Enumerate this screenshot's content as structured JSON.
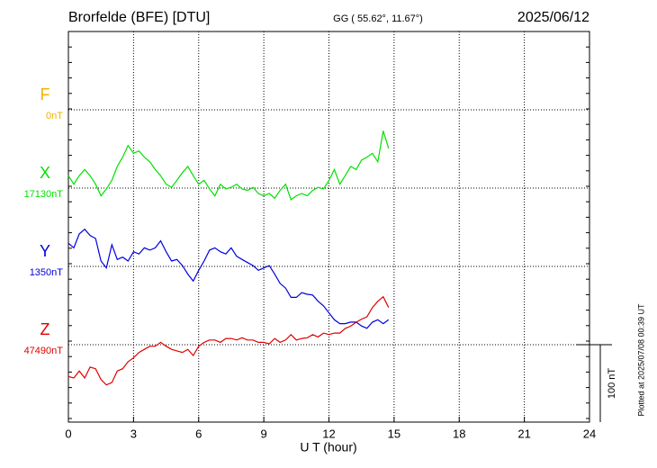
{
  "chart_data": {
    "type": "line",
    "title": "Brorfelde (BFE)  [DTU]",
    "subtitle": "GG ( 55.62°,  11.67°)",
    "date": "2025/06/12",
    "x_label": "U T (hour)",
    "footnote": "Plotted at 2025/07/08 00:39 UT",
    "xlim": [
      0,
      24
    ],
    "xticks": [
      0,
      3,
      6,
      9,
      12,
      15,
      18,
      21,
      24
    ],
    "scale_bar": {
      "value": 100,
      "label": "100 nT"
    },
    "x": [
      0,
      0.25,
      0.5,
      0.75,
      1,
      1.25,
      1.5,
      1.75,
      2,
      2.25,
      2.5,
      2.75,
      3,
      3.25,
      3.5,
      3.75,
      4,
      4.25,
      4.5,
      4.75,
      5,
      5.25,
      5.5,
      5.75,
      6,
      6.25,
      6.5,
      6.75,
      7,
      7.25,
      7.5,
      7.75,
      8,
      8.25,
      8.5,
      8.75,
      9,
      9.25,
      9.5,
      9.75,
      10,
      10.25,
      10.5,
      10.75,
      11,
      11.25,
      11.5,
      11.75,
      12,
      12.25,
      12.5,
      12.75,
      13,
      13.25,
      13.5,
      13.75,
      14,
      14.25,
      14.5,
      14.75
    ],
    "series": [
      {
        "name": "F",
        "color": "#f0b000",
        "baseline": {
          "value": 0,
          "label": "0nT"
        }
      },
      {
        "name": "X",
        "color": "#00e000",
        "baseline": {
          "value": 17130,
          "label": "17130nT"
        },
        "values": [
          17146,
          17135,
          17146,
          17154,
          17146,
          17135,
          17120,
          17129,
          17140,
          17158,
          17170,
          17185,
          17175,
          17178,
          17170,
          17164,
          17154,
          17146,
          17135,
          17131,
          17140,
          17150,
          17158,
          17146,
          17135,
          17140,
          17129,
          17120,
          17135,
          17129,
          17131,
          17135,
          17129,
          17127,
          17131,
          17123,
          17120,
          17123,
          17117,
          17127,
          17135,
          17115,
          17120,
          17123,
          17120,
          17127,
          17131,
          17129,
          17140,
          17154,
          17135,
          17146,
          17158,
          17154,
          17166,
          17170,
          17175,
          17164,
          17204,
          17181
        ]
      },
      {
        "name": "Y",
        "color": "#0000e0",
        "baseline": {
          "value": 1350,
          "label": "1350nT"
        },
        "values": [
          1380,
          1374,
          1392,
          1398,
          1390,
          1386,
          1357,
          1348,
          1378,
          1359,
          1362,
          1357,
          1369,
          1366,
          1374,
          1371,
          1374,
          1383,
          1369,
          1357,
          1359,
          1351,
          1340,
          1331,
          1345,
          1357,
          1371,
          1374,
          1369,
          1366,
          1374,
          1363,
          1359,
          1355,
          1351,
          1345,
          1348,
          1351,
          1340,
          1328,
          1322,
          1310,
          1310,
          1316,
          1314,
          1313,
          1305,
          1299,
          1290,
          1281,
          1276,
          1276,
          1278,
          1278,
          1273,
          1270,
          1278,
          1281,
          1276,
          1281
        ]
      },
      {
        "name": "Z",
        "color": "#e00000",
        "baseline": {
          "value": 47490,
          "label": "47490nT"
        },
        "values": [
          47449,
          47447,
          47456,
          47447,
          47461,
          47459,
          47445,
          47438,
          47441,
          47456,
          47459,
          47468,
          47473,
          47480,
          47484,
          47488,
          47488,
          47493,
          47488,
          47484,
          47482,
          47480,
          47484,
          47476,
          47488,
          47493,
          47496,
          47496,
          47493,
          47498,
          47498,
          47496,
          47499,
          47496,
          47496,
          47493,
          47493,
          47491,
          47498,
          47493,
          47496,
          47503,
          47496,
          47498,
          47499,
          47503,
          47500,
          47505,
          47503,
          47505,
          47505,
          47511,
          47514,
          47519,
          47523,
          47526,
          47538,
          47546,
          47552,
          47538
        ]
      }
    ]
  }
}
